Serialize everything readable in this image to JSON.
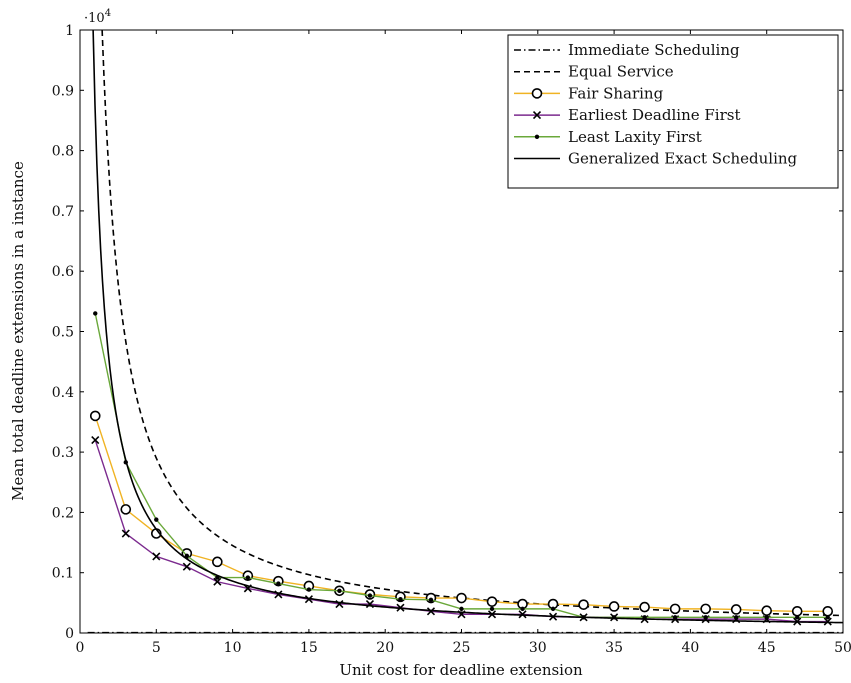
{
  "chart_data": {
    "type": "line",
    "xlabel": "Unit cost for deadline extension",
    "ylabel": "Mean total deadline extensions in a instance",
    "y_multiplier_label": "·10",
    "y_multiplier_exp": "4",
    "xlim": [
      0,
      50
    ],
    "ylim": [
      0,
      1
    ],
    "x_ticks": [
      0,
      5,
      10,
      15,
      20,
      25,
      30,
      35,
      40,
      45,
      50
    ],
    "x_tick_labels": [
      "0",
      "5",
      "10",
      "15",
      "20",
      "25",
      "30",
      "35",
      "40",
      "45",
      "50"
    ],
    "y_ticks": [
      0,
      0.1,
      0.2,
      0.3,
      0.4,
      0.5,
      0.6,
      0.7,
      0.8,
      0.9,
      1
    ],
    "y_tick_labels": [
      "0",
      "0.1",
      "0.2",
      "0.3",
      "0.4",
      "0.5",
      "0.6",
      "0.7",
      "0.8",
      "0.9",
      "1"
    ],
    "grid": false,
    "legend_position": "top-right",
    "series": [
      {
        "name": "Immediate Scheduling",
        "style": "dashdot",
        "color": "#000000",
        "marker": "none",
        "x": [
          0.5,
          50
        ],
        "y": [
          0.0008,
          0.0008
        ]
      },
      {
        "name": "Equal Service",
        "style": "dashed",
        "color": "#000000",
        "marker": "none",
        "curve": {
          "a": 1.45,
          "pmin": 1.45
        }
      },
      {
        "name": "Fair Sharing",
        "style": "solid",
        "color": "#f0b323",
        "marker": "circle",
        "x": [
          1,
          3,
          5,
          7,
          9,
          11,
          13,
          15,
          17,
          19,
          21,
          23,
          25,
          27,
          29,
          31,
          33,
          35,
          37,
          39,
          41,
          43,
          45,
          47,
          49
        ],
        "y": [
          0.36,
          0.205,
          0.165,
          0.132,
          0.118,
          0.095,
          0.086,
          0.078,
          0.07,
          0.064,
          0.06,
          0.058,
          0.058,
          0.052,
          0.048,
          0.048,
          0.047,
          0.044,
          0.043,
          0.04,
          0.04,
          0.039,
          0.037,
          0.036,
          0.036
        ]
      },
      {
        "name": "Earliest Deadline First",
        "style": "solid",
        "color": "#7b2a8e",
        "marker": "cross",
        "x": [
          1,
          3,
          5,
          7,
          9,
          11,
          13,
          15,
          17,
          19,
          21,
          23,
          25,
          27,
          29,
          31,
          33,
          35,
          37,
          39,
          41,
          43,
          45,
          47,
          49
        ],
        "y": [
          0.32,
          0.165,
          0.127,
          0.11,
          0.085,
          0.074,
          0.064,
          0.056,
          0.048,
          0.048,
          0.042,
          0.036,
          0.031,
          0.031,
          0.031,
          0.027,
          0.026,
          0.026,
          0.023,
          0.023,
          0.023,
          0.023,
          0.023,
          0.019,
          0.019
        ]
      },
      {
        "name": "Least Laxity First",
        "style": "solid",
        "color": "#6aa83a",
        "marker": "dot",
        "x": [
          1,
          3,
          5,
          7,
          9,
          11,
          13,
          15,
          17,
          19,
          21,
          23,
          25,
          27,
          29,
          31,
          33,
          35,
          37,
          39,
          41,
          43,
          45,
          47,
          49
        ],
        "y": [
          0.53,
          0.283,
          0.188,
          0.128,
          0.092,
          0.092,
          0.082,
          0.072,
          0.07,
          0.062,
          0.056,
          0.055,
          0.04,
          0.04,
          0.04,
          0.04,
          0.026,
          0.026,
          0.026,
          0.026,
          0.026,
          0.026,
          0.026,
          0.026,
          0.026
        ]
      },
      {
        "name": "Generalized Exact Scheduling",
        "style": "solid",
        "color": "#000000",
        "marker": "none",
        "curve": {
          "a": 0.86,
          "pmin": 0.86
        }
      }
    ]
  }
}
